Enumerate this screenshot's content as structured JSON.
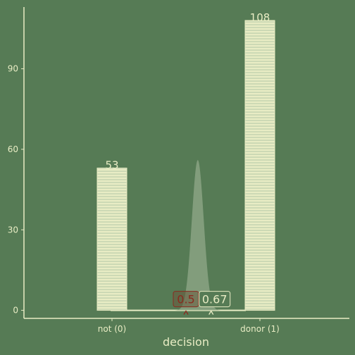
{
  "chart_data": {
    "type": "bar",
    "xlabel": "decision",
    "ylabel": "",
    "categories": [
      "not (0)",
      "donor (1)"
    ],
    "values": [
      53,
      108
    ],
    "value_labels": [
      "53",
      "108"
    ],
    "ylim": [
      -3,
      113
    ],
    "yticks": [
      0,
      30,
      60,
      90
    ],
    "ytick_labels": [
      "0",
      "30",
      "60",
      "90"
    ],
    "grid": false,
    "bar_pattern": "horizontal-stripes",
    "overlay": {
      "type": "density",
      "center": 0.58,
      "peak": 56,
      "spread": 0.04
    },
    "markers": [
      {
        "label": "0.5",
        "x": 0.5,
        "color": "#8b2a1e"
      },
      {
        "label": "0.67",
        "x": 0.67,
        "color": "#e8ecc4"
      }
    ],
    "colors": {
      "background": "#567b55",
      "bar": "#e8ecc4",
      "stripe": "#b3c7a7",
      "axis": "#e8ecc4",
      "density": "#8aa384",
      "marker_low": "#8b2a1e",
      "marker_high": "#e8ecc4"
    }
  }
}
